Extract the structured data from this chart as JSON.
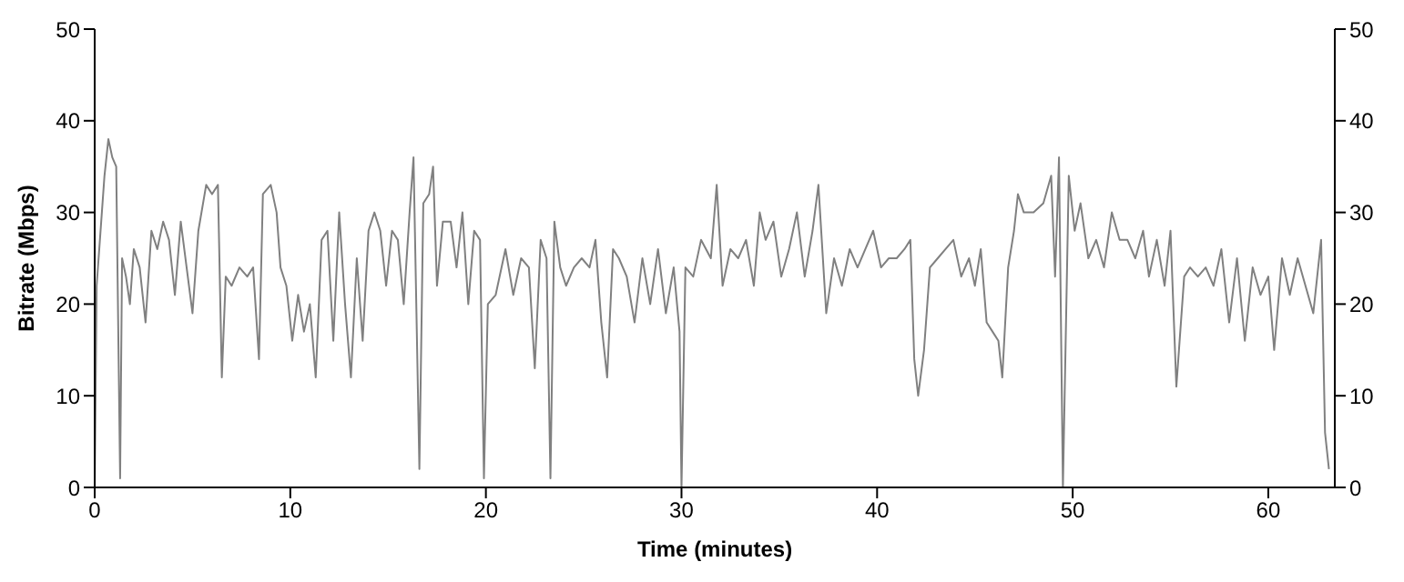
{
  "chart_data": {
    "type": "line",
    "xlabel": "Time (minutes)",
    "ylabel": "Bitrate (Mbps)",
    "xlim": [
      0,
      63.4
    ],
    "xticks": [
      0,
      10,
      20,
      30,
      40,
      50,
      60
    ],
    "ylim": [
      0,
      50
    ],
    "yticks": [
      0,
      10,
      20,
      30,
      40,
      50
    ],
    "y2lim": [
      0,
      50
    ],
    "y2ticks": [
      0,
      10,
      20,
      30,
      40,
      50
    ],
    "grid": false,
    "marker": "none",
    "line_style": "solid",
    "series": [
      {
        "color": "#808080",
        "x": [
          0,
          0.1,
          0.3,
          0.5,
          0.7,
          0.9,
          1.1,
          1.3,
          1.4,
          1.6,
          1.8,
          2.0,
          2.3,
          2.6,
          2.9,
          3.2,
          3.5,
          3.8,
          4.1,
          4.4,
          4.7,
          5.0,
          5.3,
          5.7,
          6.0,
          6.3,
          6.5,
          6.7,
          7.0,
          7.4,
          7.8,
          8.1,
          8.4,
          8.6,
          9.0,
          9.3,
          9.5,
          9.8,
          10.1,
          10.4,
          10.7,
          11.0,
          11.3,
          11.6,
          11.9,
          12.2,
          12.5,
          12.8,
          13.1,
          13.4,
          13.7,
          14.0,
          14.3,
          14.6,
          14.9,
          15.2,
          15.5,
          15.8,
          16.1,
          16.3,
          16.6,
          16.8,
          17.1,
          17.3,
          17.5,
          17.8,
          18.2,
          18.5,
          18.8,
          19.1,
          19.4,
          19.7,
          19.9,
          20.1,
          20.5,
          21.0,
          21.4,
          21.8,
          22.2,
          22.5,
          22.8,
          23.1,
          23.3,
          23.5,
          23.8,
          24.1,
          24.5,
          24.9,
          25.3,
          25.6,
          25.9,
          26.2,
          26.5,
          26.8,
          27.2,
          27.6,
          28.0,
          28.4,
          28.8,
          29.2,
          29.6,
          29.9,
          30.0,
          30.2,
          30.6,
          31.0,
          31.5,
          31.8,
          32.1,
          32.5,
          32.9,
          33.3,
          33.7,
          34.0,
          34.3,
          34.7,
          35.1,
          35.5,
          35.9,
          36.3,
          36.7,
          37.0,
          37.4,
          37.8,
          38.2,
          38.6,
          39.0,
          39.4,
          39.8,
          40.2,
          40.6,
          41.0,
          41.4,
          41.7,
          41.9,
          42.1,
          42.4,
          42.7,
          43.1,
          43.5,
          43.9,
          44.3,
          44.7,
          45.0,
          45.3,
          45.6,
          45.9,
          46.2,
          46.4,
          46.7,
          47.0,
          47.2,
          47.5,
          48.0,
          48.5,
          48.9,
          49.1,
          49.3,
          49.5,
          49.8,
          50.1,
          50.4,
          50.8,
          51.2,
          51.6,
          52.0,
          52.4,
          52.8,
          53.2,
          53.6,
          53.9,
          54.3,
          54.7,
          55.0,
          55.3,
          55.7,
          56.0,
          56.4,
          56.8,
          57.2,
          57.6,
          58.0,
          58.4,
          58.8,
          59.2,
          59.6,
          60.0,
          60.3,
          60.7,
          61.1,
          61.5,
          61.9,
          62.3,
          62.7,
          62.9,
          63.1
        ],
        "values": [
          0,
          22,
          28,
          34,
          38,
          36,
          35,
          1,
          25,
          23,
          20,
          26,
          24,
          18,
          28,
          26,
          29,
          27,
          21,
          29,
          24,
          19,
          28,
          33,
          32,
          33,
          12,
          23,
          22,
          24,
          23,
          24,
          14,
          32,
          33,
          30,
          24,
          22,
          16,
          21,
          17,
          20,
          12,
          27,
          28,
          16,
          30,
          20,
          12,
          25,
          16,
          28,
          30,
          28,
          22,
          28,
          27,
          20,
          30,
          36,
          2,
          31,
          32,
          35,
          22,
          29,
          29,
          24,
          30,
          20,
          28,
          27,
          1,
          20,
          21,
          26,
          21,
          25,
          24,
          13,
          27,
          25,
          1,
          29,
          24,
          22,
          24,
          25,
          24,
          27,
          18,
          12,
          26,
          25,
          23,
          18,
          25,
          20,
          26,
          19,
          24,
          17,
          0,
          24,
          23,
          27,
          25,
          33,
          22,
          26,
          25,
          27,
          22,
          30,
          27,
          29,
          23,
          26,
          30,
          23,
          28,
          33,
          19,
          25,
          22,
          26,
          24,
          26,
          28,
          24,
          25,
          25,
          26,
          27,
          14,
          10,
          15,
          24,
          25,
          26,
          27,
          23,
          25,
          22,
          26,
          18,
          17,
          16,
          12,
          24,
          28,
          32,
          30,
          30,
          31,
          34,
          23,
          36,
          0,
          34,
          28,
          31,
          25,
          27,
          24,
          30,
          27,
          27,
          25,
          28,
          23,
          27,
          22,
          28,
          11,
          23,
          24,
          23,
          24,
          22,
          26,
          18,
          25,
          16,
          24,
          21,
          23,
          15,
          25,
          21,
          25,
          22,
          19,
          27,
          6,
          2
        ]
      }
    ]
  }
}
